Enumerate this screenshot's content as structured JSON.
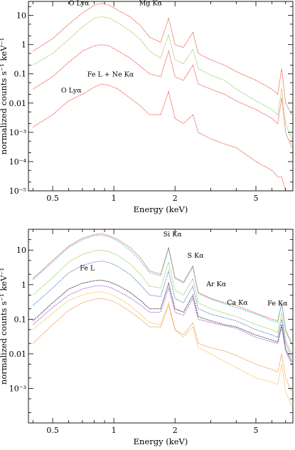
{
  "chart_data": [
    {
      "type": "line",
      "panel": "top",
      "xlabel": "Energy (keV)",
      "ylabel": "normalized counts s⁻¹ keV⁻¹",
      "xscale": "log",
      "yscale": "log",
      "xlim": [
        0.38,
        7.6
      ],
      "ylim": [
        1e-05,
        30
      ],
      "x_ticks": [
        {
          "value": 0.5,
          "label": "0.5"
        },
        {
          "value": 1,
          "label": "1"
        },
        {
          "value": 2,
          "label": "2"
        },
        {
          "value": 5,
          "label": "5"
        }
      ],
      "y_ticks": [
        {
          "value": 10,
          "label": "10"
        },
        {
          "value": 1,
          "label": "1"
        },
        {
          "value": 0.1,
          "label": "0.1"
        },
        {
          "value": 0.01,
          "label": "0.01"
        },
        {
          "value": 0.001,
          "label": "10⁻³"
        },
        {
          "value": 0.0001,
          "label": "10⁻⁴"
        },
        {
          "value": 1e-05,
          "label": "10⁻⁵"
        }
      ],
      "annotations": [
        {
          "text": "O Lyα",
          "x": 0.6,
          "y": 22
        },
        {
          "text": "Mg Kα",
          "x": 1.33,
          "y": 22
        },
        {
          "text": "Fe L + Ne Kα",
          "x": 0.74,
          "y": 0.08
        },
        {
          "text": "O Lyα",
          "x": 0.55,
          "y": 0.023
        }
      ],
      "series": [
        {
          "color": "#e8392a",
          "x": [
            0.4,
            0.5,
            0.6,
            0.7,
            0.8,
            0.87,
            0.95,
            1.05,
            1.2,
            1.35,
            1.5,
            1.7,
            1.86,
            2.0,
            2.2,
            2.45,
            2.6,
            3.0,
            3.5,
            4.0,
            5.0,
            6.0,
            6.4,
            6.7,
            7.0,
            7.5
          ],
          "y": [
            0.6,
            1.6,
            5,
            12,
            22,
            26,
            22,
            15,
            9,
            4.5,
            1.8,
            1.2,
            8,
            1.0,
            0.8,
            2.6,
            0.5,
            0.3,
            0.2,
            0.12,
            0.06,
            0.03,
            0.02,
            0.15,
            0.01,
            0.004
          ]
        },
        {
          "color": "#8fc33c",
          "x": [
            0.4,
            0.5,
            0.6,
            0.7,
            0.8,
            0.87,
            0.95,
            1.05,
            1.2,
            1.35,
            1.5,
            1.7,
            1.86,
            2.0,
            2.2,
            2.45,
            2.6,
            3.0,
            3.5,
            4.0,
            5.0,
            6.0,
            6.4,
            6.7,
            7.0,
            7.5
          ],
          "y": [
            0.2,
            0.5,
            1.5,
            4,
            8,
            9,
            8,
            5.5,
            3,
            1.5,
            0.6,
            0.35,
            2.2,
            0.3,
            0.22,
            0.7,
            0.15,
            0.09,
            0.06,
            0.03,
            0.012,
            0.006,
            0.004,
            0.03,
            0.002,
            0.0006
          ]
        },
        {
          "color": "#e8392a",
          "x": [
            0.4,
            0.5,
            0.6,
            0.7,
            0.8,
            0.87,
            0.95,
            1.05,
            1.2,
            1.35,
            1.5,
            1.7,
            1.86,
            2.0,
            2.2,
            2.45,
            2.6,
            3.0,
            3.5,
            4.0,
            5.0,
            6.0,
            6.4,
            6.7,
            7.0,
            7.5
          ],
          "y": [
            0.03,
            0.08,
            0.25,
            0.6,
            0.9,
            1.0,
            0.9,
            0.6,
            0.35,
            0.18,
            0.1,
            0.08,
            0.6,
            0.08,
            0.06,
            0.2,
            0.045,
            0.03,
            0.02,
            0.012,
            0.006,
            0.003,
            0.002,
            0.015,
            0.001,
            0.0003
          ]
        },
        {
          "color": "#e8392a",
          "x": [
            0.4,
            0.5,
            0.6,
            0.7,
            0.8,
            0.87,
            0.95,
            1.05,
            1.2,
            1.35,
            1.5,
            1.7,
            1.86,
            2.0,
            2.2,
            2.45,
            2.6,
            3.0,
            3.5,
            4.0,
            5.0,
            6.0,
            6.4,
            6.7,
            7.0
          ],
          "y": [
            0.0015,
            0.004,
            0.012,
            0.02,
            0.035,
            0.045,
            0.04,
            0.03,
            0.015,
            0.008,
            0.004,
            0.004,
            0.025,
            0.003,
            0.002,
            0.004,
            0.001,
            0.0006,
            0.0004,
            0.0003,
            0.0001,
            5e-05,
            3e-05,
            3e-05,
            1e-05
          ]
        }
      ]
    },
    {
      "type": "line",
      "panel": "bottom",
      "xlabel": "Energy (keV)",
      "ylabel": "normalized counts s⁻¹ keV⁻¹",
      "xscale": "log",
      "yscale": "log",
      "xlim": [
        0.38,
        7.6
      ],
      "ylim": [
        0.0001,
        40
      ],
      "x_ticks": [
        {
          "value": 0.5,
          "label": "0.5"
        },
        {
          "value": 1,
          "label": "1"
        },
        {
          "value": 2,
          "label": "2"
        },
        {
          "value": 5,
          "label": "5"
        }
      ],
      "y_ticks": [
        {
          "value": 10,
          "label": "10"
        },
        {
          "value": 1,
          "label": "1"
        },
        {
          "value": 0.1,
          "label": "0.1"
        },
        {
          "value": 0.01,
          "label": "0.01"
        },
        {
          "value": 0.001,
          "label": "10⁻³"
        }
      ],
      "annotations": [
        {
          "text": "Si Kα",
          "x": 1.75,
          "y": 25
        },
        {
          "text": "S Kα",
          "x": 2.3,
          "y": 6
        },
        {
          "text": "Ar Kα",
          "x": 2.85,
          "y": 0.9
        },
        {
          "text": "Ca Kα",
          "x": 3.6,
          "y": 0.26
        },
        {
          "text": "Fe Kα",
          "x": 5.7,
          "y": 0.25
        },
        {
          "text": "Fe L",
          "x": 0.68,
          "y": 2.6
        }
      ],
      "series": [
        {
          "color": "#e8392a",
          "x": [
            0.4,
            0.5,
            0.6,
            0.7,
            0.8,
            0.87,
            0.95,
            1.05,
            1.2,
            1.35,
            1.5,
            1.7,
            1.86,
            2.0,
            2.2,
            2.45,
            2.6,
            3.0,
            3.5,
            4.0,
            5.0,
            6.0,
            6.4,
            6.7,
            7.0,
            7.5
          ],
          "y": [
            1.5,
            5,
            13,
            22,
            28,
            30,
            26,
            20,
            12,
            6,
            2.5,
            2,
            12,
            1.6,
            1.2,
            3.5,
            0.6,
            0.4,
            0.3,
            0.25,
            0.15,
            0.1,
            0.09,
            0.3,
            0.05,
            0.02
          ]
        },
        {
          "color": "#2bbcd4",
          "x": [
            0.4,
            0.5,
            0.6,
            0.7,
            0.8,
            0.87,
            0.95,
            1.05,
            1.2,
            1.35,
            1.5,
            1.7,
            1.86,
            2.0,
            2.2,
            2.45,
            2.6,
            3.0,
            3.5,
            4.0,
            5.0,
            6.0,
            6.4,
            6.7,
            7.0,
            7.5
          ],
          "y": [
            1.4,
            4.5,
            12,
            20,
            26,
            27,
            24,
            18,
            10,
            5,
            2.2,
            1.8,
            11,
            1.5,
            1.1,
            3.2,
            0.55,
            0.38,
            0.28,
            0.22,
            0.14,
            0.09,
            0.08,
            0.28,
            0.045,
            0.018
          ]
        },
        {
          "color": "#8fc33c",
          "x": [
            0.4,
            0.5,
            0.6,
            0.7,
            0.8,
            0.87,
            0.95,
            1.05,
            1.2,
            1.35,
            1.5,
            1.7,
            1.86,
            2.0,
            2.2,
            2.45,
            2.6,
            3.0,
            3.5,
            4.0,
            5.0,
            6.0,
            6.4,
            6.7,
            7.0,
            7.5
          ],
          "y": [
            0.5,
            1.6,
            4.5,
            7.5,
            9.5,
            10,
            9,
            7,
            4,
            2,
            0.9,
            0.8,
            4.5,
            0.7,
            0.5,
            1.5,
            0.3,
            0.2,
            0.15,
            0.12,
            0.07,
            0.05,
            0.04,
            0.15,
            0.025,
            0.01
          ]
        },
        {
          "color": "#3b6fc4",
          "x": [
            0.4,
            0.5,
            0.6,
            0.7,
            0.8,
            0.87,
            0.95,
            1.05,
            1.2,
            1.35,
            1.5,
            1.7,
            1.86,
            2.0,
            2.2,
            2.45,
            2.6,
            3.0,
            3.5,
            4.0,
            5.0,
            6.0,
            6.4,
            6.7,
            7.0,
            7.5
          ],
          "y": [
            0.25,
            0.8,
            2.2,
            3.6,
            4.5,
            4.8,
            4.3,
            3.3,
            2,
            1,
            0.5,
            0.45,
            2.5,
            0.4,
            0.3,
            0.9,
            0.2,
            0.14,
            0.11,
            0.09,
            0.05,
            0.035,
            0.03,
            0.1,
            0.02,
            0.008
          ]
        },
        {
          "color": "#111111",
          "x": [
            0.4,
            0.5,
            0.6,
            0.7,
            0.8,
            0.87,
            0.95,
            1.05,
            1.2,
            1.35,
            1.5,
            1.7,
            1.86,
            2.0,
            2.2,
            2.45,
            2.6,
            3.0,
            3.5,
            4.0,
            5.0,
            6.0,
            6.4,
            6.7,
            7.0,
            7.5
          ],
          "y": [
            0.09,
            0.3,
            0.75,
            1.1,
            1.3,
            1.35,
            1.2,
            0.95,
            0.6,
            0.35,
            0.2,
            0.2,
            1.1,
            0.2,
            0.16,
            0.5,
            0.12,
            0.09,
            0.07,
            0.06,
            0.035,
            0.025,
            0.022,
            0.07,
            0.014,
            0.006
          ]
        },
        {
          "color": "#9b3fd1",
          "x": [
            0.4,
            0.5,
            0.6,
            0.7,
            0.8,
            0.87,
            0.95,
            1.05,
            1.2,
            1.35,
            1.5,
            1.7,
            1.86,
            2.0,
            2.2,
            2.45,
            2.6,
            3.0,
            3.5,
            4.0,
            5.0,
            6.0,
            6.4,
            6.7,
            7.0,
            7.5
          ],
          "y": [
            0.07,
            0.22,
            0.5,
            0.75,
            0.9,
            0.95,
            0.85,
            0.65,
            0.42,
            0.26,
            0.16,
            0.16,
            0.8,
            0.16,
            0.13,
            0.4,
            0.1,
            0.08,
            0.065,
            0.055,
            0.03,
            0.022,
            0.02,
            0.06,
            0.012,
            0.005
          ]
        },
        {
          "color": "#f2b632",
          "x": [
            0.4,
            0.5,
            0.6,
            0.7,
            0.8,
            0.87,
            0.95,
            1.05,
            1.2,
            1.35,
            1.5,
            1.7,
            1.86,
            2.0,
            2.2,
            2.45,
            2.6,
            3.0,
            3.5,
            4.0,
            5.0,
            6.0,
            6.4,
            6.7,
            7.0,
            7.5
          ],
          "y": [
            0.05,
            0.15,
            0.35,
            0.5,
            0.6,
            0.62,
            0.55,
            0.42,
            0.25,
            0.14,
            0.08,
            0.07,
            0.3,
            0.05,
            0.03,
            0.06,
            0.015,
            0.01,
            0.006,
            0.004,
            0.002,
            0.0015,
            0.0013,
            0.005,
            0.0008,
            0.0003
          ]
        },
        {
          "color": "#f07f2a",
          "x": [
            0.4,
            0.5,
            0.6,
            0.7,
            0.8,
            0.87,
            0.95,
            1.05,
            1.2,
            1.35,
            1.5,
            1.7,
            1.86,
            2.0,
            2.2,
            2.45,
            2.6,
            3.0,
            3.5,
            4.0,
            5.0,
            6.0,
            6.4,
            6.7,
            7.0,
            7.5
          ],
          "y": [
            0.02,
            0.07,
            0.18,
            0.3,
            0.38,
            0.4,
            0.36,
            0.28,
            0.17,
            0.1,
            0.06,
            0.06,
            0.25,
            0.05,
            0.035,
            0.08,
            0.02,
            0.015,
            0.012,
            0.009,
            0.005,
            0.0035,
            0.003,
            0.01,
            0.002,
            0.0008
          ]
        }
      ]
    }
  ]
}
